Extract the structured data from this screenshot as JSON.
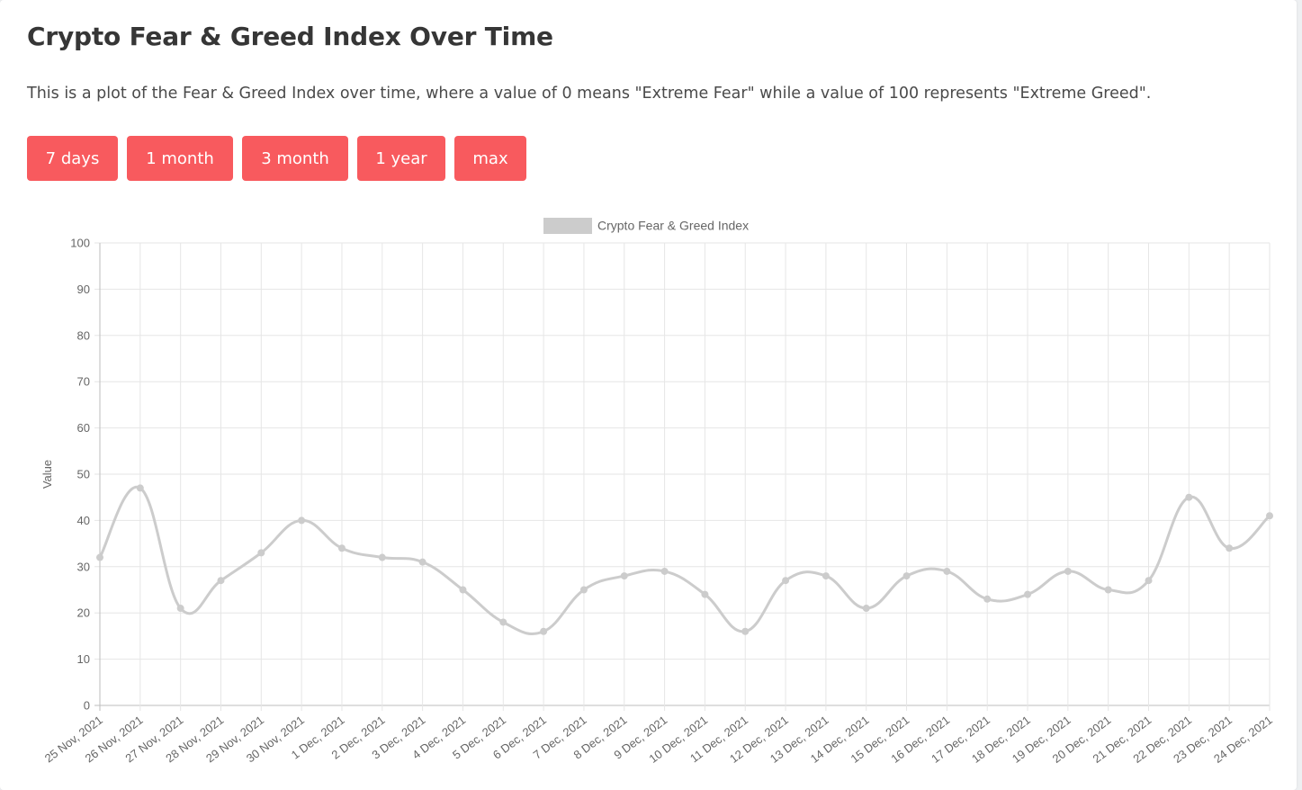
{
  "header": {
    "title": "Crypto Fear & Greed Index Over Time",
    "description": "This is a plot of the Fear & Greed Index over time, where a value of 0 means \"Extreme Fear\" while a value of 100 represents \"Extreme Greed\"."
  },
  "ranges": {
    "seven_days": "7 days",
    "one_month": "1 month",
    "three_month": "3 month",
    "one_year": "1 year",
    "max": "max"
  },
  "colors": {
    "button": "#f85a5e",
    "series": "#cccccc"
  },
  "chart_data": {
    "type": "line",
    "legend_position": "top",
    "grid": true,
    "xlabel": "",
    "ylabel": "Value",
    "ylim": [
      0,
      100
    ],
    "yticks": [
      0,
      10,
      20,
      30,
      40,
      50,
      60,
      70,
      80,
      90,
      100
    ],
    "categories": [
      "25 Nov, 2021",
      "26 Nov, 2021",
      "27 Nov, 2021",
      "28 Nov, 2021",
      "29 Nov, 2021",
      "30 Nov, 2021",
      "1 Dec, 2021",
      "2 Dec, 2021",
      "3 Dec, 2021",
      "4 Dec, 2021",
      "5 Dec, 2021",
      "6 Dec, 2021",
      "7 Dec, 2021",
      "8 Dec, 2021",
      "9 Dec, 2021",
      "10 Dec, 2021",
      "11 Dec, 2021",
      "12 Dec, 2021",
      "13 Dec, 2021",
      "14 Dec, 2021",
      "15 Dec, 2021",
      "16 Dec, 2021",
      "17 Dec, 2021",
      "18 Dec, 2021",
      "19 Dec, 2021",
      "20 Dec, 2021",
      "21 Dec, 2021",
      "22 Dec, 2021",
      "23 Dec, 2021",
      "24 Dec, 2021"
    ],
    "series": [
      {
        "name": "Crypto Fear & Greed Index",
        "color": "#cccccc",
        "values": [
          32,
          47,
          21,
          27,
          33,
          40,
          34,
          32,
          31,
          25,
          18,
          16,
          25,
          28,
          29,
          24,
          16,
          27,
          28,
          21,
          28,
          29,
          23,
          24,
          29,
          25,
          27,
          45,
          34,
          41
        ]
      }
    ]
  }
}
